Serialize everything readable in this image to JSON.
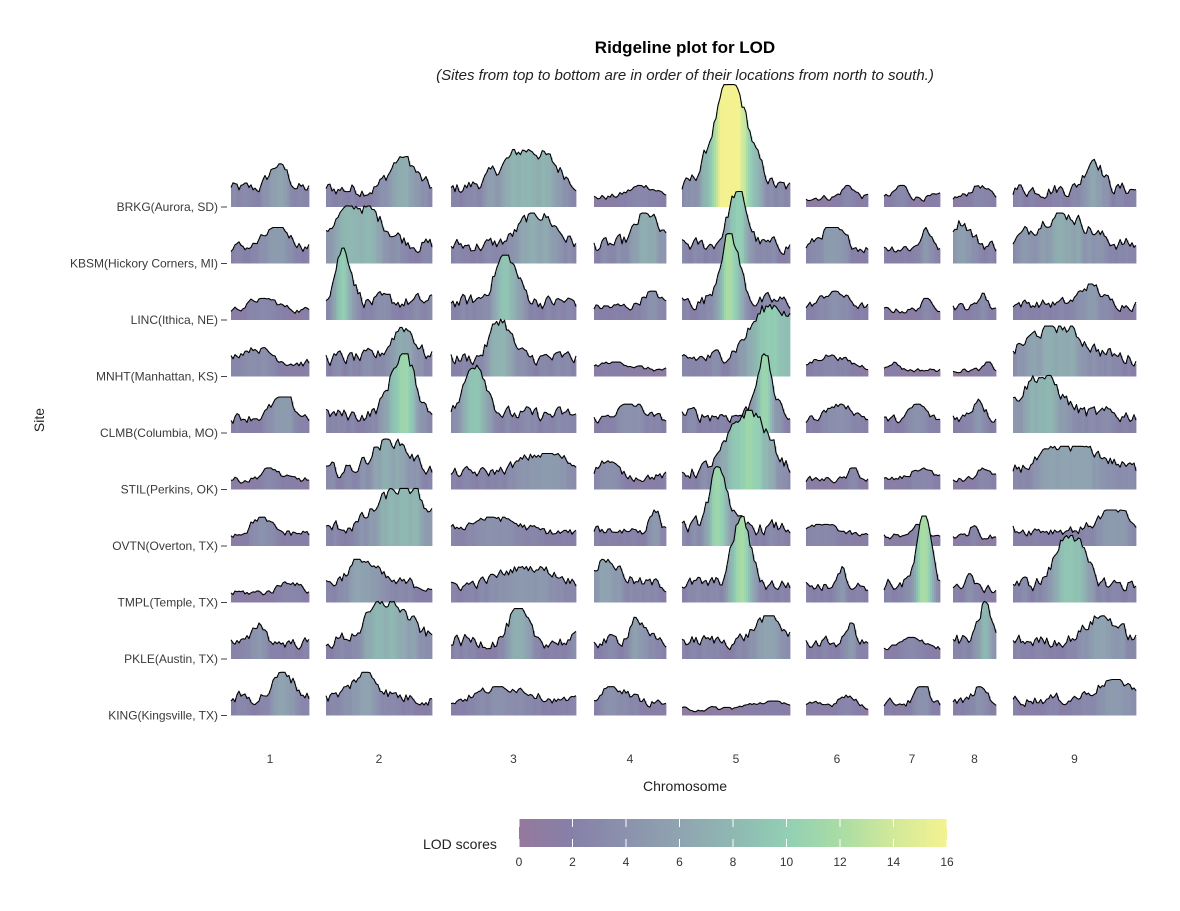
{
  "chart_data": {
    "type": "area",
    "subtype": "ridgeline",
    "title": "Ridgeline plot for LOD",
    "subtitle": "(Sites from top to bottom are in order of their locations from north to south.)",
    "xlabel": "Chromosome",
    "ylabel": "Site",
    "sites": [
      "BRKG(Aurora, SD)",
      "KBSM(Hickory Corners, MI)",
      "LINC(Ithica, NE)",
      "MNHT(Manhattan, KS)",
      "CLMB(Columbia, MO)",
      "STIL(Perkins, OK)",
      "OVTN(Overton, TX)",
      "TMPL(Temple, TX)",
      "PKLE(Austin, TX)",
      "KING(Kingsville, TX)"
    ],
    "chromosomes": [
      "1",
      "2",
      "3",
      "4",
      "5",
      "6",
      "7",
      "8",
      "9"
    ],
    "approx_peak_lod": [
      [
        6,
        7,
        8,
        3,
        17,
        3,
        3,
        3,
        7
      ],
      [
        5,
        8,
        7,
        7,
        10,
        5,
        5,
        6,
        7
      ],
      [
        3,
        10,
        9,
        4,
        12,
        4,
        3,
        4,
        5
      ],
      [
        4,
        7,
        8,
        2,
        10,
        3,
        2,
        2,
        7
      ],
      [
        5,
        11,
        10,
        4,
        11,
        4,
        4,
        5,
        8
      ],
      [
        3,
        7,
        5,
        4,
        11,
        3,
        3,
        3,
        6
      ],
      [
        4,
        8,
        4,
        5,
        11,
        3,
        3,
        3,
        5
      ],
      [
        3,
        6,
        5,
        6,
        12,
        5,
        12,
        4,
        10
      ],
      [
        5,
        8,
        7,
        6,
        6,
        5,
        3,
        8,
        6
      ],
      [
        6,
        6,
        4,
        4,
        2,
        3,
        4,
        4,
        5
      ]
    ],
    "colorbar": {
      "label": "LOD scores",
      "min": 0,
      "max": 16,
      "ticks": [
        "0",
        "2",
        "4",
        "6",
        "8",
        "10",
        "12",
        "14",
        "16"
      ],
      "palette": [
        "#95799c",
        "#8680a8",
        "#8b92ad",
        "#8fa4b0",
        "#8fb8b2",
        "#92cfb4",
        "#a9dca4",
        "#d2e99a",
        "#f4f290"
      ]
    },
    "grid": false,
    "legend_position": "bottom"
  }
}
